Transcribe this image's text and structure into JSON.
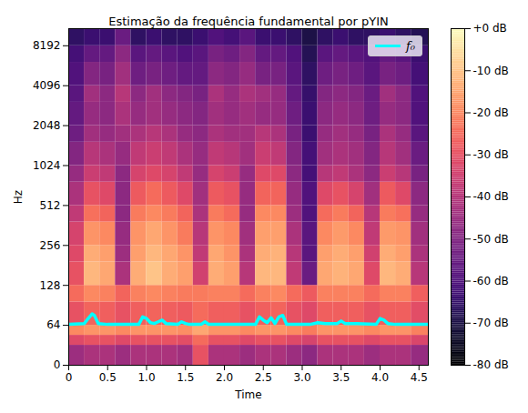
{
  "chart_data": {
    "type": "heatmap",
    "title": "Estimação da frequência fundamental por pYIN",
    "x_label": "Time",
    "y_label": "Hz",
    "log": "y",
    "grid": false,
    "legend": "upper right",
    "xlim": [
      0,
      4.62
    ],
    "xticks": [
      0,
      0.5,
      {
        "value": 1,
        "label": "1.0"
      },
      {
        "value": 1.5,
        "label": "1.5"
      },
      {
        "value": 2,
        "label": "2.0"
      },
      {
        "value": 2.5,
        "label": "2.5"
      },
      {
        "value": 3,
        "label": "3.0"
      },
      {
        "value": 3.5,
        "label": "3.5"
      },
      {
        "value": 4,
        "label": "4.0"
      },
      {
        "value": 4.5,
        "label": "4.5"
      }
    ],
    "ylim": [
      0,
      11025
    ],
    "yticks": [
      0,
      64,
      128,
      256,
      512,
      1024,
      2048,
      4096,
      8192
    ],
    "color": "magma",
    "time_edges": [
      0,
      0.2,
      0.4,
      0.6,
      0.8,
      1.0,
      1.2,
      1.4,
      1.6,
      1.8,
      2.0,
      2.2,
      2.4,
      2.6,
      2.8,
      3.0,
      3.2,
      3.4,
      3.6,
      3.8,
      4.0,
      4.2,
      4.4,
      4.62
    ],
    "freq_edges": [
      0,
      32,
      48,
      64,
      96,
      128,
      192,
      256,
      384,
      512,
      768,
      1024,
      1536,
      2048,
      3072,
      4096,
      6144,
      8192,
      11025
    ],
    "cells": [
      [
        -45,
        -42,
        -42,
        -45,
        -42,
        -42,
        -42,
        -44,
        -30,
        -42,
        -42,
        -45,
        -42,
        -42,
        -45,
        -48,
        -42,
        -42,
        -42,
        -45,
        -42,
        -42,
        -46
      ],
      [
        -32,
        -30,
        -30,
        -32,
        -30,
        -30,
        -30,
        -31,
        -25,
        -30,
        -30,
        -32,
        -30,
        -30,
        -32,
        -34,
        -30,
        -30,
        -30,
        -32,
        -30,
        -30,
        -33
      ],
      [
        -20,
        -18,
        -18,
        -20,
        -18,
        -18,
        -18,
        -19,
        -15,
        -18,
        -18,
        -20,
        -18,
        -18,
        -20,
        -22,
        -18,
        -18,
        -18,
        -20,
        -18,
        -18,
        -21
      ],
      [
        -30,
        -26,
        -27,
        -30,
        -27,
        -26,
        -27,
        -28,
        -25,
        -27,
        -27,
        -30,
        -27,
        -26,
        -30,
        -32,
        -27,
        -27,
        -27,
        -30,
        -27,
        -27,
        -31
      ],
      [
        -25,
        -20,
        -21,
        -26,
        -21,
        -20,
        -21,
        -22,
        -22,
        -21,
        -21,
        -25,
        -21,
        -20,
        -25,
        -28,
        -21,
        -21,
        -21,
        -25,
        -21,
        -21,
        -27
      ],
      [
        -30,
        -12,
        -15,
        -42,
        -14,
        -10,
        -14,
        -16,
        -35,
        -14,
        -16,
        -40,
        -12,
        -12,
        -38,
        -55,
        -15,
        -13,
        -15,
        -32,
        -12,
        -14,
        -40
      ],
      [
        -32,
        -14,
        -16,
        -45,
        -16,
        -12,
        -15,
        -18,
        -38,
        -15,
        -18,
        -42,
        -14,
        -13,
        -40,
        -58,
        -16,
        -14,
        -16,
        -35,
        -14,
        -16,
        -42
      ],
      [
        -34,
        -18,
        -20,
        -46,
        -18,
        -15,
        -18,
        -22,
        -40,
        -18,
        -20,
        -44,
        -16,
        -16,
        -42,
        -58,
        -20,
        -17,
        -20,
        -38,
        -17,
        -18,
        -44
      ],
      [
        -38,
        -24,
        -26,
        -48,
        -22,
        -20,
        -22,
        -26,
        -42,
        -22,
        -25,
        -46,
        -20,
        -20,
        -45,
        -60,
        -25,
        -22,
        -26,
        -40,
        -22,
        -24,
        -46
      ],
      [
        -42,
        -30,
        -32,
        -48,
        -28,
        -25,
        -28,
        -32,
        -44,
        -28,
        -30,
        -46,
        -26,
        -26,
        -46,
        -60,
        -32,
        -30,
        -34,
        -44,
        -28,
        -32,
        -48
      ],
      [
        -46,
        -36,
        -38,
        -48,
        -34,
        -32,
        -34,
        -38,
        -46,
        -34,
        -36,
        -46,
        -32,
        -32,
        -48,
        -62,
        -40,
        -38,
        -42,
        -48,
        -36,
        -40,
        -52
      ],
      [
        -50,
        -40,
        -42,
        -46,
        -38,
        -36,
        -38,
        -42,
        -46,
        -38,
        -40,
        -44,
        -36,
        -38,
        -50,
        -62,
        -44,
        -42,
        -44,
        -50,
        -40,
        -44,
        -55
      ],
      [
        -54,
        -44,
        -46,
        -44,
        -42,
        -40,
        -42,
        -46,
        -48,
        -42,
        -44,
        -44,
        -40,
        -42,
        -52,
        -64,
        -46,
        -44,
        -46,
        -52,
        -42,
        -46,
        -58
      ],
      [
        -56,
        -46,
        -48,
        -42,
        -46,
        -44,
        -46,
        -48,
        -50,
        -44,
        -46,
        -44,
        -46,
        -46,
        -54,
        -64,
        -48,
        -46,
        -48,
        -54,
        -46,
        -48,
        -60
      ],
      [
        -58,
        -44,
        -48,
        -40,
        -48,
        -44,
        -48,
        -50,
        -52,
        -42,
        -46,
        -42,
        -44,
        -46,
        -56,
        -65,
        -50,
        -48,
        -50,
        -55,
        -44,
        -48,
        -60
      ],
      [
        -60,
        -50,
        -52,
        -44,
        -54,
        -52,
        -54,
        -56,
        -56,
        -48,
        -50,
        -46,
        -52,
        -52,
        -58,
        -66,
        -54,
        -52,
        -54,
        -58,
        -52,
        -54,
        -62
      ],
      [
        -62,
        -56,
        -56,
        -48,
        -58,
        -56,
        -58,
        -60,
        -58,
        -52,
        -54,
        -50,
        -56,
        -56,
        -60,
        -68,
        -58,
        -56,
        -58,
        -60,
        -56,
        -58,
        -64
      ],
      [
        -66,
        -64,
        -64,
        -55,
        -66,
        -64,
        -66,
        -66,
        -64,
        -60,
        -62,
        -58,
        -64,
        -64,
        -66,
        -70,
        -66,
        -64,
        -66,
        -66,
        -64,
        -66,
        -68
      ]
    ],
    "colorbar": {
      "range": [
        -80,
        0
      ],
      "ticks": [
        {
          "value": 0,
          "label": "+0 dB"
        },
        {
          "value": -10,
          "label": "-10 dB"
        },
        {
          "value": -20,
          "label": "-20 dB"
        },
        {
          "value": -30,
          "label": "-30 dB"
        },
        {
          "value": -40,
          "label": "-40 dB"
        },
        {
          "value": -50,
          "label": "-50 dB"
        },
        {
          "value": -60,
          "label": "-60 dB"
        },
        {
          "value": -70,
          "label": "-70 dB"
        },
        {
          "value": -80,
          "label": "-80 dB"
        }
      ]
    },
    "series": [
      {
        "name": "f₀",
        "type": "line",
        "color": "#00ffff",
        "x": [
          0,
          0.2,
          0.25,
          0.3,
          0.33,
          0.38,
          0.5,
          0.9,
          0.95,
          1.0,
          1.05,
          1.1,
          1.15,
          1.2,
          1.25,
          1.4,
          1.45,
          1.5,
          1.55,
          1.7,
          1.75,
          1.8,
          2.0,
          2.4,
          2.45,
          2.5,
          2.55,
          2.6,
          2.65,
          2.7,
          2.75,
          2.8,
          3.1,
          3.2,
          3.3,
          3.45,
          3.5,
          3.55,
          3.7,
          3.95,
          4.0,
          4.05,
          4.1,
          4.2,
          4.62
        ],
        "values": [
          65,
          66,
          72,
          78,
          76,
          66,
          65,
          65,
          74,
          72,
          67,
          66,
          68,
          70,
          66,
          65,
          68,
          66,
          65,
          65,
          68,
          65,
          65,
          65,
          74,
          70,
          67,
          73,
          66,
          74,
          76,
          65,
          65,
          67,
          66,
          66,
          69,
          66,
          66,
          65,
          72,
          70,
          66,
          65,
          65
        ]
      }
    ]
  }
}
